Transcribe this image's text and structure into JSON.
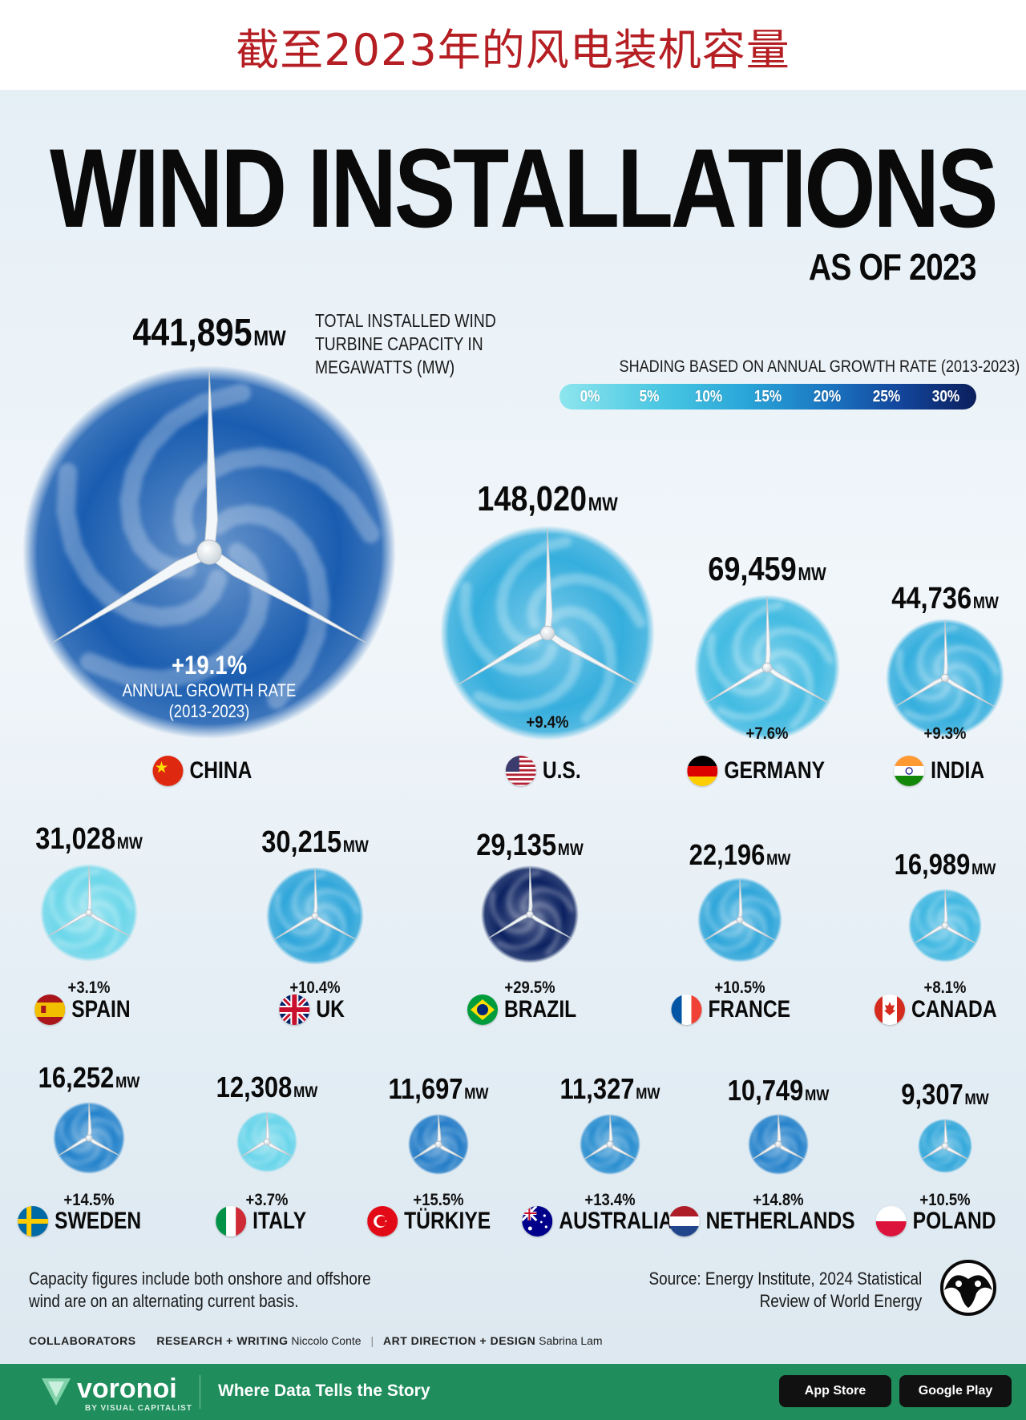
{
  "header_cn": "截至2023年的风电装机容量",
  "title": "WIND INSTALLATIONS",
  "subtitle": "AS OF 2023",
  "description": [
    "TOTAL INSTALLED WIND",
    "TURBINE CAPACITY IN",
    "MEGAWATTS (MW)"
  ],
  "annual_growth_label": [
    "ANNUAL GROWTH RATE",
    "(2013-2023)"
  ],
  "legend": {
    "caption": "SHADING BASED ON ANNUAL GROWTH RATE (2013-2023)",
    "ticks": [
      "0%",
      "5%",
      "10%",
      "15%",
      "20%",
      "25%",
      "30%"
    ]
  },
  "unit": "MW",
  "chart_data": {
    "type": "bubble",
    "title": "WIND INSTALLATIONS",
    "subtitle": "AS OF 2023",
    "value_unit": "MW",
    "color_scale": {
      "min": 0,
      "max": 30,
      "unit": "%"
    },
    "countries": [
      {
        "name": "CHINA",
        "flag": "flag-china-icon",
        "capacity_mw": 441895,
        "capacity_label": "441,895",
        "growth": 19.1,
        "growth_label": "+19.1%"
      },
      {
        "name": "U.S.",
        "flag": "flag-usa-icon",
        "capacity_mw": 148020,
        "capacity_label": "148,020",
        "growth": 9.4,
        "growth_label": "+9.4%"
      },
      {
        "name": "GERMANY",
        "flag": "flag-germany-icon",
        "capacity_mw": 69459,
        "capacity_label": "69,459",
        "growth": 7.6,
        "growth_label": "+7.6%"
      },
      {
        "name": "INDIA",
        "flag": "flag-india-icon",
        "capacity_mw": 44736,
        "capacity_label": "44,736",
        "growth": 9.3,
        "growth_label": "+9.3%"
      },
      {
        "name": "SPAIN",
        "flag": "flag-spain-icon",
        "capacity_mw": 31028,
        "capacity_label": "31,028",
        "growth": 3.1,
        "growth_label": "+3.1%"
      },
      {
        "name": "UK",
        "flag": "flag-uk-icon",
        "capacity_mw": 30215,
        "capacity_label": "30,215",
        "growth": 10.4,
        "growth_label": "+10.4%"
      },
      {
        "name": "BRAZIL",
        "flag": "flag-brazil-icon",
        "capacity_mw": 29135,
        "capacity_label": "29,135",
        "growth": 29.5,
        "growth_label": "+29.5%"
      },
      {
        "name": "FRANCE",
        "flag": "flag-france-icon",
        "capacity_mw": 22196,
        "capacity_label": "22,196",
        "growth": 10.5,
        "growth_label": "+10.5%"
      },
      {
        "name": "CANADA",
        "flag": "flag-canada-icon",
        "capacity_mw": 16989,
        "capacity_label": "16,989",
        "growth": 8.1,
        "growth_label": "+8.1%"
      },
      {
        "name": "SWEDEN",
        "flag": "flag-sweden-icon",
        "capacity_mw": 16252,
        "capacity_label": "16,252",
        "growth": 14.5,
        "growth_label": "+14.5%"
      },
      {
        "name": "ITALY",
        "flag": "flag-italy-icon",
        "capacity_mw": 12308,
        "capacity_label": "12,308",
        "growth": 3.7,
        "growth_label": "+3.7%"
      },
      {
        "name": "TÜRKIYE",
        "flag": "flag-turkiye-icon",
        "capacity_mw": 11697,
        "capacity_label": "11,697",
        "growth": 15.5,
        "growth_label": "+15.5%"
      },
      {
        "name": "AUSTRALIA",
        "flag": "flag-australia-icon",
        "capacity_mw": 11327,
        "capacity_label": "11,327",
        "growth": 13.4,
        "growth_label": "+13.4%"
      },
      {
        "name": "NETHERLANDS",
        "flag": "flag-netherlands-icon",
        "capacity_mw": 10749,
        "capacity_label": "10,749",
        "growth": 14.8,
        "growth_label": "+14.8%"
      },
      {
        "name": "POLAND",
        "flag": "flag-poland-icon",
        "capacity_mw": 9307,
        "capacity_label": "9,307",
        "growth": 10.5,
        "growth_label": "+10.5%"
      }
    ]
  },
  "note": [
    "Capacity figures include both onshore and offshore",
    "wind are on an alternating current basis."
  ],
  "source": [
    "Source: Energy Institute, 2024 Statistical",
    "Review of World Energy"
  ],
  "credits": {
    "collaborators": "COLLABORATORS",
    "research_label": "RESEARCH + WRITING",
    "research_name": "Niccolo Conte",
    "design_label": "ART DIRECTION + DESIGN",
    "design_name": "Sabrina Lam"
  },
  "footer": {
    "brand": "voronoi",
    "brand_sub": "BY VISUAL CAPITALIST",
    "tagline": "Where Data Tells the Story",
    "store_1": "App Store",
    "store_2": "Google Play"
  }
}
